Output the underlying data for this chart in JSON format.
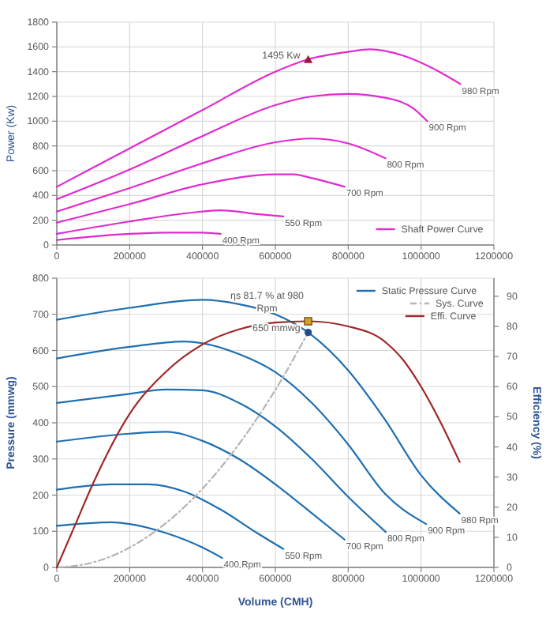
{
  "chart_data": [
    {
      "type": "line",
      "ylabel": "Power (Kw)",
      "xlim": [
        0,
        1200000
      ],
      "ylim": [
        0,
        1800
      ],
      "xticks": [
        0,
        200000,
        400000,
        600000,
        800000,
        1000000,
        1200000
      ],
      "yticks": [
        0,
        200,
        400,
        600,
        800,
        1000,
        1200,
        1400,
        1600,
        1800
      ],
      "grid": true,
      "legend": "bottom right",
      "series": [
        {
          "name": "Shaft Power Curve",
          "color": "#e02ad0",
          "x": [
            0,
            200000,
            400000,
            600000,
            690000,
            800000,
            860000,
            950000,
            1030000,
            1108000
          ],
          "values": [
            470,
            780,
            1090,
            1400,
            1500,
            1560,
            1580,
            1530,
            1430,
            1300
          ]
        },
        {
          "color": "#e02ad0",
          "x": [
            0,
            200000,
            400000,
            600000,
            700000,
            800000,
            900000,
            980000,
            1017000
          ],
          "values": [
            370,
            610,
            880,
            1130,
            1200,
            1220,
            1190,
            1100,
            1000
          ]
        },
        {
          "color": "#e02ad0",
          "x": [
            0,
            200000,
            400000,
            600000,
            700000,
            800000,
            902000
          ],
          "values": [
            270,
            460,
            660,
            830,
            860,
            820,
            700
          ]
        },
        {
          "color": "#e02ad0",
          "x": [
            0,
            200000,
            400000,
            600000,
            650000,
            700000,
            790000
          ],
          "values": [
            180,
            330,
            490,
            570,
            570,
            540,
            470
          ]
        },
        {
          "color": "#e02ad0",
          "x": [
            0,
            200000,
            400000,
            450000,
            550000,
            622000
          ],
          "values": [
            90,
            190,
            270,
            280,
            250,
            230
          ]
        },
        {
          "color": "#e02ad0",
          "x": [
            0,
            200000,
            300000,
            400000,
            450000
          ],
          "values": [
            40,
            90,
            100,
            100,
            90
          ]
        },
        {
          "type": "scatter",
          "marker": "triangle",
          "color": "#a01840",
          "x": [
            690000
          ],
          "values": [
            1495
          ]
        }
      ],
      "annotations": [
        {
          "text": "1495 Kw",
          "x": 690000,
          "y": 1495
        },
        {
          "text": "980 Rpm",
          "x": 1108000,
          "y": 1295
        },
        {
          "text": "900 Rpm",
          "x": 1017000,
          "y": 1000
        },
        {
          "text": "800 Rpm",
          "x": 902000,
          "y": 700
        },
        {
          "text": "700 Rpm",
          "x": 790000,
          "y": 470
        },
        {
          "text": "550 Rpm",
          "x": 622000,
          "y": 230
        },
        {
          "text": "400 Rpm",
          "x": 450000,
          "y": 90
        }
      ]
    },
    {
      "type": "line",
      "xlabel": "Volume (CMH)",
      "ylabel": "Pressure (mmwg)",
      "y2label": "Efficiency (%)",
      "xlim": [
        0,
        1200000
      ],
      "ylim": [
        0,
        800
      ],
      "y2lim": [
        0,
        96
      ],
      "xticks": [
        0,
        200000,
        400000,
        600000,
        800000,
        1000000,
        1200000
      ],
      "yticks": [
        0,
        100,
        200,
        300,
        400,
        500,
        600,
        700,
        800
      ],
      "y2ticks": [
        0,
        10,
        20,
        30,
        40,
        50,
        60,
        70,
        80,
        90
      ],
      "grid": true,
      "legend": "top right",
      "series": [
        {
          "name": "Static Pressure Curve",
          "color": "#1f6fb0",
          "x": [
            0,
            200000,
            400000,
            500000,
            600000,
            690000,
            800000,
            900000,
            1000000,
            1106000
          ],
          "values": [
            685,
            718,
            740,
            728,
            700,
            650,
            545,
            410,
            255,
            149
          ]
        },
        {
          "color": "#1f6fb0",
          "x": [
            0,
            200000,
            350000,
            400000,
            500000,
            600000,
            700000,
            800000,
            900000,
            1014000
          ],
          "values": [
            578,
            610,
            625,
            620,
            590,
            540,
            455,
            340,
            205,
            120
          ]
        },
        {
          "color": "#1f6fb0",
          "x": [
            0,
            200000,
            300000,
            400000,
            500000,
            600000,
            700000,
            800000,
            903000
          ],
          "values": [
            455,
            480,
            492,
            490,
            455,
            390,
            300,
            195,
            98
          ]
        },
        {
          "color": "#1f6fb0",
          "x": [
            0,
            200000,
            300000,
            400000,
            500000,
            600000,
            700000,
            790000
          ],
          "values": [
            348,
            370,
            375,
            350,
            300,
            230,
            150,
            77
          ]
        },
        {
          "color": "#1f6fb0",
          "x": [
            0,
            150000,
            250000,
            350000,
            450000,
            550000,
            622000
          ],
          "values": [
            215,
            230,
            230,
            210,
            160,
            95,
            51
          ]
        },
        {
          "color": "#1f6fb0",
          "x": [
            0,
            150000,
            200000,
            300000,
            400000,
            454000
          ],
          "values": [
            115,
            125,
            120,
            95,
            55,
            26
          ]
        },
        {
          "name": "Sys. Curve",
          "color": "#b4b4b4",
          "line_style": "dashed",
          "x": [
            0,
            100000,
            200000,
            300000,
            400000,
            500000,
            600000,
            690000
          ],
          "values": [
            0,
            14,
            55,
            123,
            218,
            341,
            491,
            650
          ]
        },
        {
          "name": "Effi. Curve",
          "color": "#a0282a",
          "axis": "y2",
          "x": [
            0,
            50000,
            100000,
            200000,
            300000,
            400000,
            500000,
            600000,
            690000,
            800000,
            900000,
            950000,
            1000000,
            1050000,
            1106000
          ],
          "values": [
            0,
            14,
            28,
            51,
            65,
            74,
            79,
            81.3,
            81.7,
            80,
            75,
            69,
            60,
            49,
            35
          ]
        },
        {
          "type": "scatter",
          "marker": "circle",
          "color": "#1f4e8c",
          "x": [
            690000
          ],
          "values": [
            650
          ]
        },
        {
          "type": "scatter",
          "marker": "square",
          "axis": "y2",
          "color": "#d4a020",
          "x": [
            690000
          ],
          "values": [
            81.7
          ]
        }
      ],
      "annotations": [
        {
          "text": "ηs 81.7 % at 980 Rpm",
          "x": 690000,
          "y": 681
        },
        {
          "text": "650 mmwg",
          "x": 690000,
          "y": 650
        },
        {
          "text": "980 Rpm",
          "x": 1106000,
          "y": 149
        },
        {
          "text": "900 Rpm",
          "x": 1014000,
          "y": 120
        },
        {
          "text": "800 Rpm",
          "x": 903000,
          "y": 98
        },
        {
          "text": "700 Rpm",
          "x": 790000,
          "y": 77
        },
        {
          "text": "550 Rpm",
          "x": 622000,
          "y": 51
        },
        {
          "text": "400 Rpm",
          "x": 454000,
          "y": 26
        }
      ]
    }
  ]
}
